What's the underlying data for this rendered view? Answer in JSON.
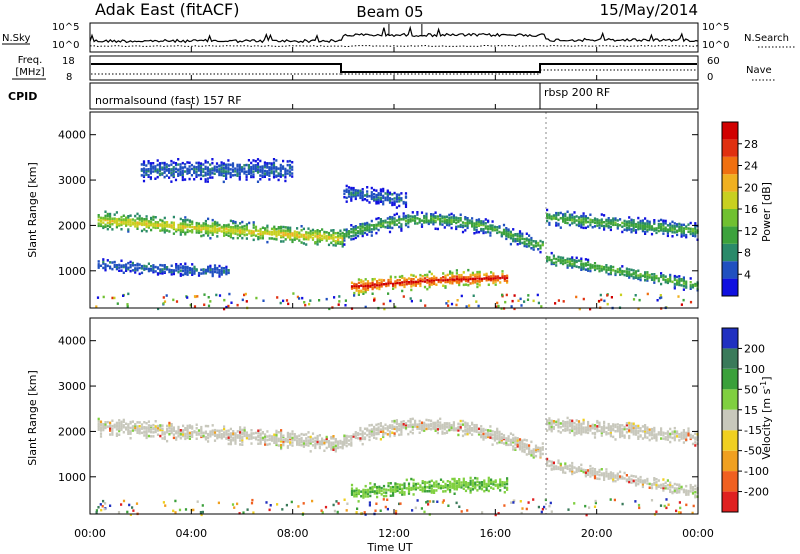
{
  "header": {
    "station": "Adak East (fitACF)",
    "beam": "Beam 05",
    "date": "15/May/2014"
  },
  "summary": {
    "nsky_label": "N.Sky",
    "nsky_ticks": [
      "10^5",
      "10^0"
    ],
    "nsearch_label": "N.Search",
    "nsearch_ticks": [
      "10^5",
      "10^0"
    ],
    "freq_label_line1": "Freq.",
    "freq_label_line2": "[MHz]",
    "freq_ticks": [
      "18",
      "8"
    ],
    "nave_label": "Nave",
    "nave_ticks": [
      "60",
      "0"
    ],
    "cpid_label": "CPID",
    "cpid_segments": [
      {
        "text": "normalsound (fast) 157 RF",
        "start_hour": 0
      },
      {
        "text": "rbsp 200 RF",
        "start_hour": 18
      }
    ]
  },
  "chart_data": [
    {
      "type": "heatmap",
      "parameter": "Power",
      "ylabel": "Slant Range [km]",
      "xlabel": "",
      "xlim_hours": [
        0,
        24
      ],
      "ylim": [
        180,
        4500
      ],
      "yticks": [
        1000,
        2000,
        3000,
        4000
      ],
      "colorbar": {
        "label": "Power [dB]",
        "tick_labels": [
          "4",
          "8",
          "12",
          "16",
          "20",
          "24",
          "28"
        ],
        "colors": [
          "#1010e0",
          "#2050c0",
          "#2a8a6a",
          "#3ca23c",
          "#70c030",
          "#c8d020",
          "#f0b020",
          "#f07010",
          "#e03010",
          "#d00000"
        ]
      },
      "echo_bands": [
        {
          "t0": 0.3,
          "t1": 10.0,
          "r0": 2150,
          "r1": 1750,
          "width": 220,
          "level": "medium-strong"
        },
        {
          "t0": 10.0,
          "t1": 17.9,
          "r0": 1700,
          "r1": 1600,
          "peak_range": 2200,
          "peak_hour": 13.5,
          "width": 200,
          "level": "medium"
        },
        {
          "t0": 10.3,
          "t1": 16.5,
          "r0": 680,
          "r1": 850,
          "peak_range": 900,
          "peak_hour": 14.0,
          "width": 180,
          "level": "strong"
        },
        {
          "t0": 18.0,
          "t1": 24.0,
          "r0": 2200,
          "r1": 1900,
          "width": 200,
          "level": "medium"
        },
        {
          "t0": 18.0,
          "t1": 24.0,
          "r0": 1300,
          "r1": 700,
          "width": 150,
          "level": "medium"
        },
        {
          "t0": 0.3,
          "t1": 5.5,
          "r0": 1150,
          "r1": 1000,
          "width": 150,
          "level": "weak"
        },
        {
          "t0": 2.0,
          "t1": 8.0,
          "r0": 3250,
          "r1": 3250,
          "width": 250,
          "level": "weak"
        },
        {
          "t0": 10.0,
          "t1": 12.5,
          "r0": 2750,
          "r1": 2600,
          "width": 200,
          "level": "weak"
        }
      ]
    },
    {
      "type": "heatmap",
      "parameter": "Velocity",
      "ylabel": "Slant Range [km]",
      "xlabel": "Time UT",
      "xlim_hours": [
        0,
        24
      ],
      "ylim": [
        180,
        4500
      ],
      "yticks": [
        1000,
        2000,
        3000,
        4000
      ],
      "xtick_labels": [
        "00:00",
        "04:00",
        "08:00",
        "12:00",
        "16:00",
        "20:00",
        "00:00"
      ],
      "colorbar": {
        "label": "Velocity [m s^-1]",
        "tick_labels": [
          "200",
          "100",
          "50",
          "15",
          "-15",
          "-50",
          "-100",
          "-200"
        ],
        "colors": [
          "#2030c0",
          "#3a7a5a",
          "#3aa03a",
          "#80d040",
          "#c8c8bc",
          "#f0d020",
          "#f0a020",
          "#f06020",
          "#e02020"
        ]
      },
      "echo_bands": [
        {
          "t0": 0.3,
          "t1": 10.0,
          "r0": 2150,
          "r1": 1750,
          "width": 220,
          "level": "ground-scatter"
        },
        {
          "t0": 10.0,
          "t1": 17.9,
          "r0": 1700,
          "r1": 1600,
          "peak_range": 2200,
          "peak_hour": 13.5,
          "width": 200,
          "level": "ground-scatter"
        },
        {
          "t0": 10.3,
          "t1": 16.5,
          "r0": 680,
          "r1": 850,
          "peak_range": 900,
          "peak_hour": 14.0,
          "width": 180,
          "level": "positive"
        },
        {
          "t0": 18.0,
          "t1": 24.0,
          "r0": 2200,
          "r1": 1900,
          "width": 200,
          "level": "ground-scatter"
        },
        {
          "t0": 18.0,
          "t1": 24.0,
          "r0": 1300,
          "r1": 700,
          "width": 150,
          "level": "ground-scatter"
        }
      ]
    }
  ],
  "axis_labels": {
    "power_ylabel": "Slant Range [km]",
    "velocity_ylabel": "Slant Range [km]",
    "power_cbar": "Power [dB]",
    "velocity_cbar": "Velocity [m s",
    "velocity_cbar_sup": "-1",
    "velocity_cbar_end": "]",
    "xlabel": "Time UT",
    "ytick_labels": [
      "1000",
      "2000",
      "3000",
      "4000"
    ]
  }
}
